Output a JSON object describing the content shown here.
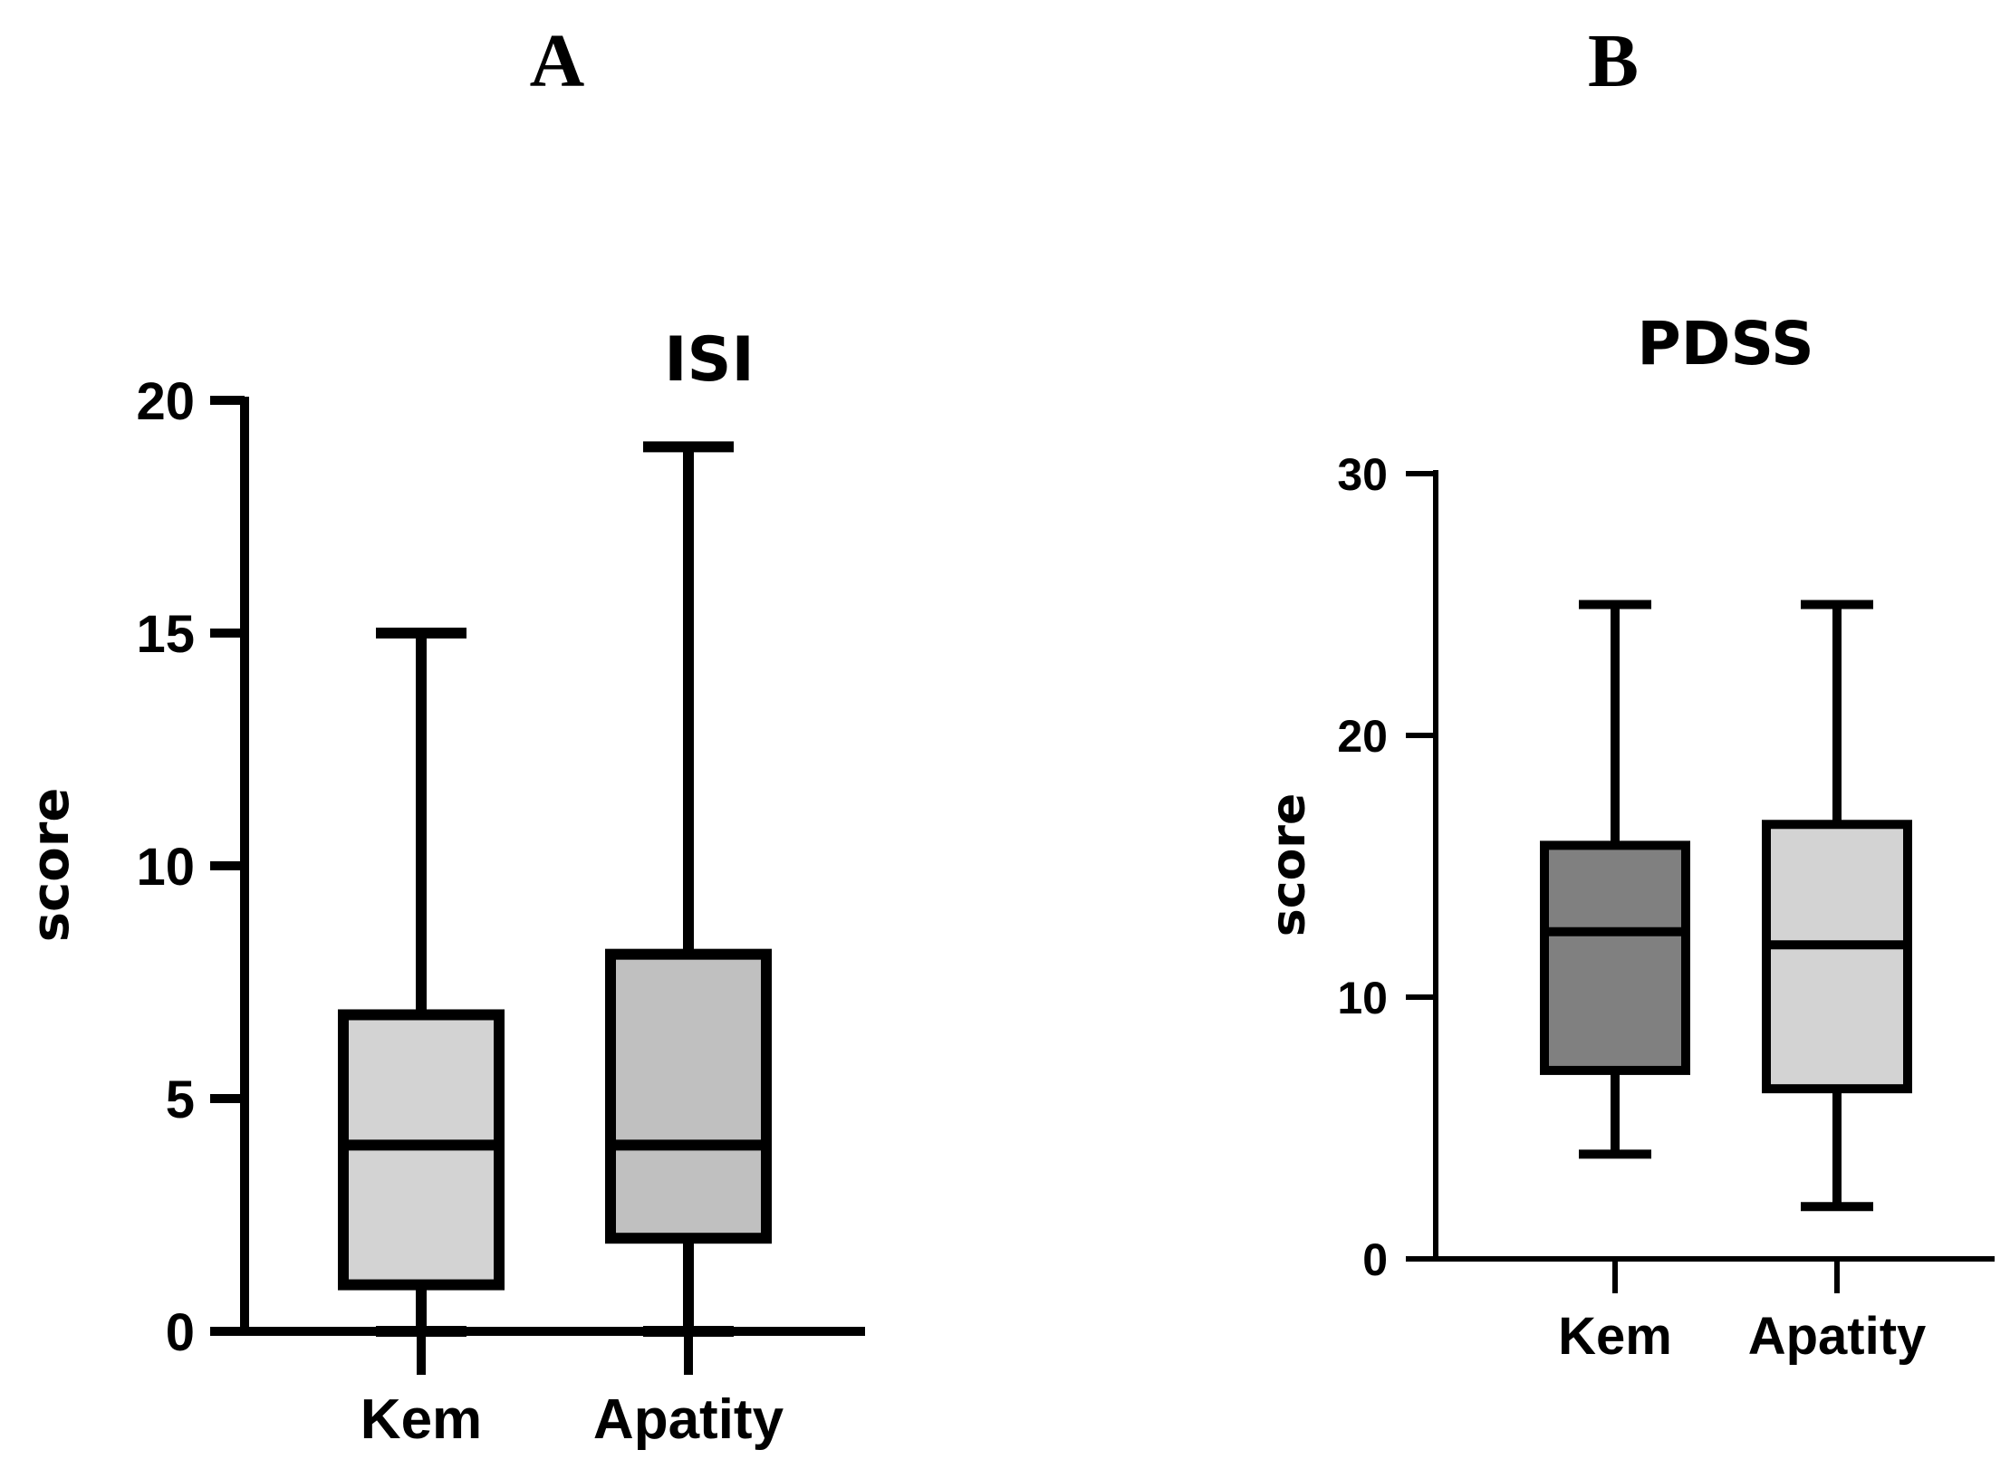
{
  "panels": {
    "a_label": "A",
    "b_label": "B"
  },
  "chart_data": [
    {
      "type": "box",
      "title": "ISI",
      "xlabel": "",
      "ylabel": "score",
      "ylim": [
        0,
        20
      ],
      "yticks": [
        0,
        5,
        10,
        15,
        20
      ],
      "categories": [
        "Kem",
        "Apatity"
      ],
      "boxes": [
        {
          "name": "Kem",
          "min": 0,
          "q1": 1,
          "median": 4,
          "q3": 6.8,
          "max": 15,
          "fill": "#d3d3d3"
        },
        {
          "name": "Apatity",
          "min": 0,
          "q1": 2,
          "median": 4,
          "q3": 8.1,
          "max": 19,
          "fill": "#c0c0c0"
        }
      ]
    },
    {
      "type": "box",
      "title": "PDSS",
      "xlabel": "",
      "ylabel": "score",
      "ylim": [
        0,
        30
      ],
      "yticks": [
        0,
        10,
        20,
        30
      ],
      "categories": [
        "Kem",
        "Apatity"
      ],
      "boxes": [
        {
          "name": "Kem",
          "min": 4,
          "q1": 7.2,
          "median": 12.5,
          "q3": 15.8,
          "max": 25,
          "fill": "#808080"
        },
        {
          "name": "Apatity",
          "min": 2,
          "q1": 6.5,
          "median": 12,
          "q3": 16.6,
          "max": 25,
          "fill": "#d3d3d3"
        }
      ]
    }
  ]
}
